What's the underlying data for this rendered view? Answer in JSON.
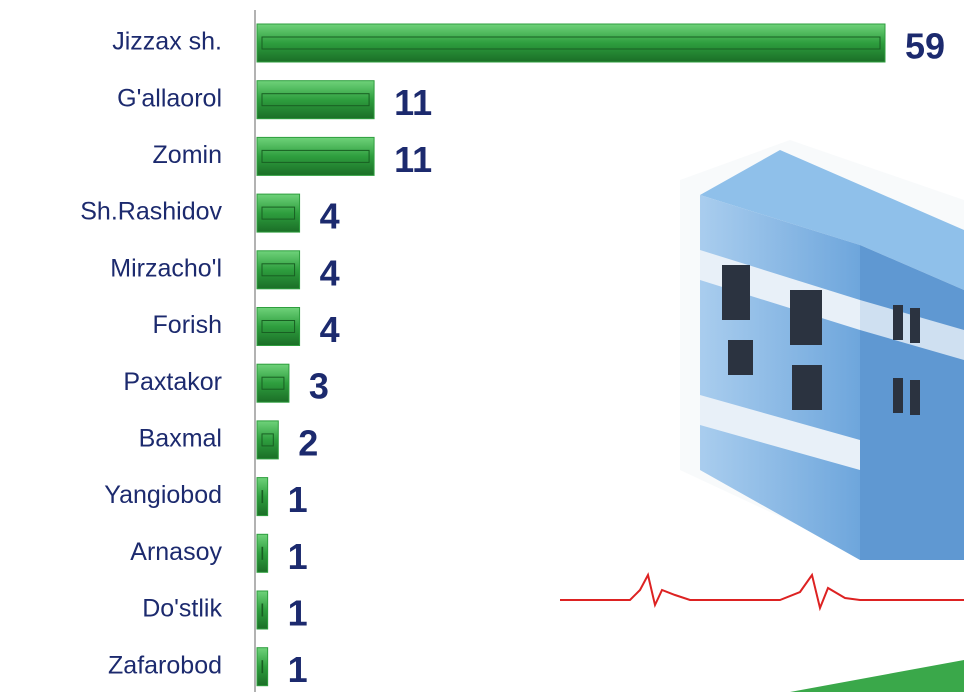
{
  "chart_data": {
    "type": "bar",
    "orientation": "horizontal",
    "categories": [
      "Jizzax sh.",
      "G'allaorol",
      "Zomin",
      "Sh.Rashidov",
      "Mirzacho'l",
      "Forish",
      "Paxtakor",
      "Baxmal",
      "Yangiobod",
      "Arnasoy",
      "Do'stlik",
      "Zafarobod"
    ],
    "values": [
      59,
      11,
      11,
      4,
      4,
      4,
      3,
      2,
      1,
      1,
      1,
      1
    ],
    "color": "#2e9e3e"
  }
}
